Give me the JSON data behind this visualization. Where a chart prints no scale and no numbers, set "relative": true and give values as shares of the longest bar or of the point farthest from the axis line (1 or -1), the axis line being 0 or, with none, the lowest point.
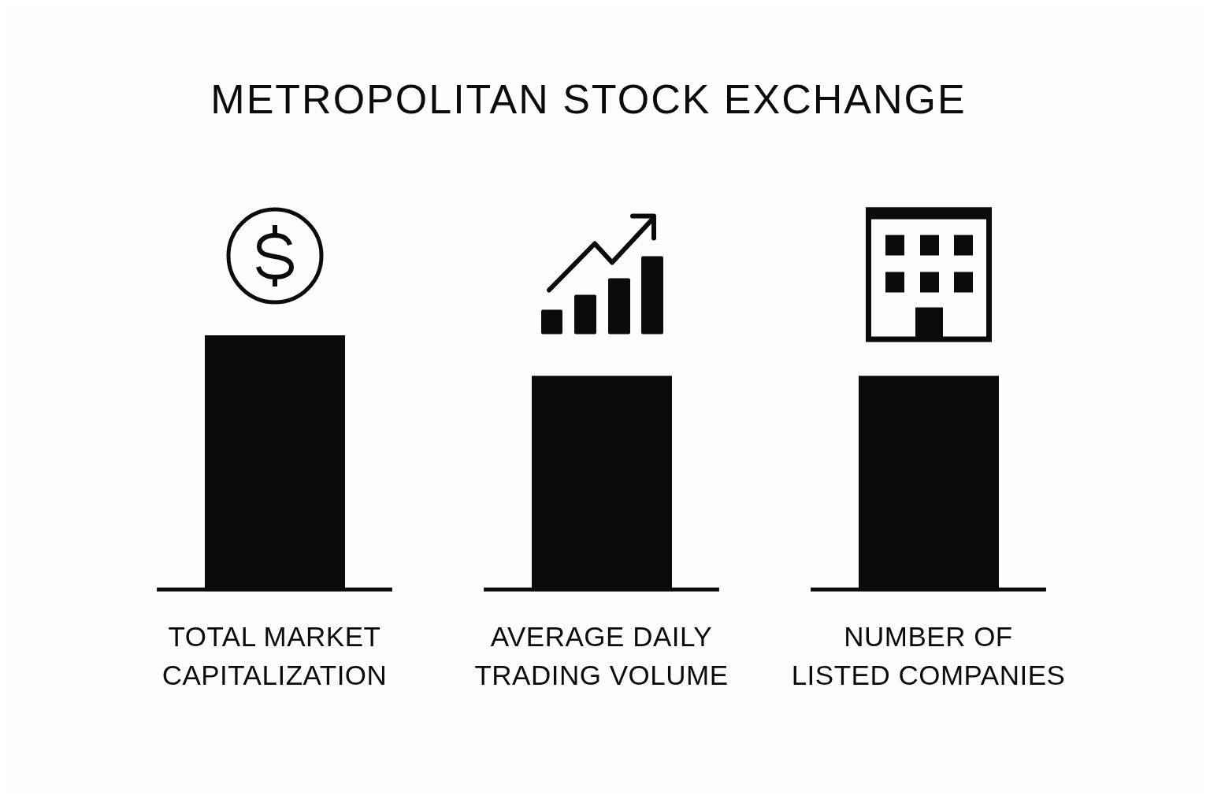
{
  "chart_data": {
    "type": "bar",
    "title": "METROPOLITAN STOCK EXCHANGE",
    "categories": [
      "TOTAL MARKET CAPITALIZATION",
      "AVERAGE DAILY TRADING VOLUME",
      "NUMBER OF LISTED COMPANIES"
    ],
    "values": [
      1,
      0.84,
      0.84
    ],
    "color": "#0a0b0b",
    "relative": true
  }
}
